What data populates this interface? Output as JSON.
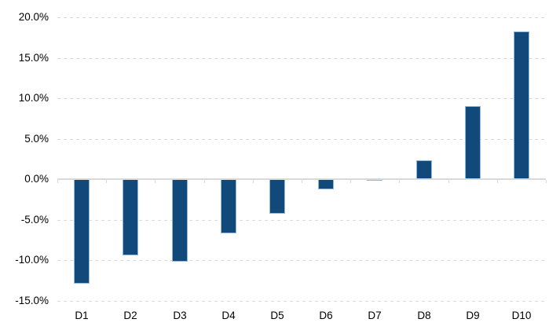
{
  "chart_data": {
    "type": "bar",
    "categories": [
      "D1",
      "D2",
      "D3",
      "D4",
      "D5",
      "D6",
      "D7",
      "D8",
      "D9",
      "D10"
    ],
    "values": [
      -12.9,
      -9.4,
      -10.2,
      -6.7,
      -4.3,
      -1.3,
      -0.2,
      2.3,
      9.0,
      18.3
    ],
    "title": "",
    "xlabel": "",
    "ylabel": "",
    "ylim": [
      -15,
      20
    ],
    "ytick_step": 5,
    "ytick_values": [
      20,
      15,
      10,
      5,
      0,
      -5,
      -10,
      -15
    ],
    "ytick_labels": [
      "20.0%",
      "15.0%",
      "10.0%",
      "5.0%",
      "0.0%",
      "-5.0%",
      "-10.0%",
      "-15.0%"
    ],
    "value_unit": "percent",
    "grid": "horizontal-dashed",
    "legend": "none",
    "colors": {
      "bar_fill": "#11497B",
      "bar_border": "#8FB8DC",
      "gridline": "#D9D9D9",
      "axis_line": "#D9D9D9",
      "text": "#000000",
      "background": "#FFFFFF"
    }
  }
}
